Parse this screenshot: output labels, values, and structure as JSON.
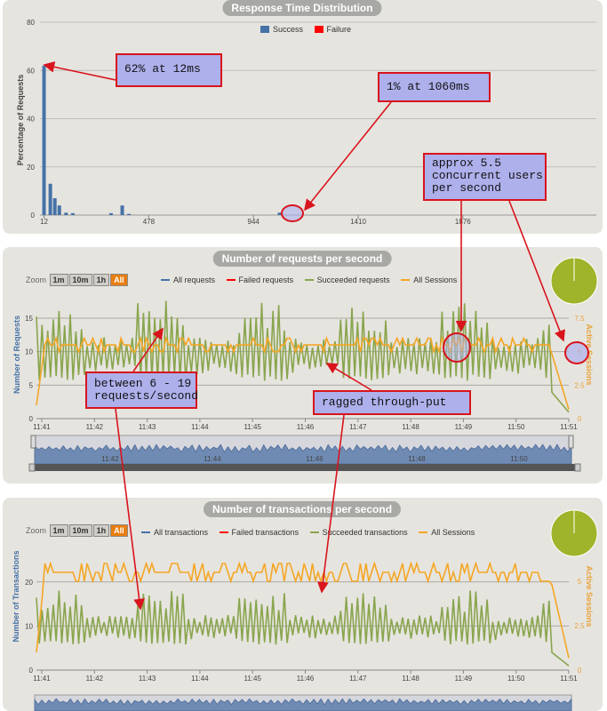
{
  "panels": {
    "response": {
      "title": "Response Time Distribution"
    },
    "requests": {
      "title": "Number of requests per second",
      "ylabel": "Number of Requests",
      "ylabel_right": "Active Sessions"
    },
    "transactions": {
      "title": "Number of transactions per second",
      "ylabel": "Number of Transactions",
      "ylabel_right": "Active Sessions"
    }
  },
  "legend": {
    "response": [
      {
        "label": "Success",
        "color": "#4572a7"
      },
      {
        "label": "Failure",
        "color": "#ff0000"
      }
    ],
    "requests": [
      {
        "label": "All requests",
        "color": "#4572a7"
      },
      {
        "label": "Failed requests",
        "color": "#ff0000"
      },
      {
        "label": "Succeeded requests",
        "color": "#89a54e"
      },
      {
        "label": "All Sessions",
        "color": "#f5a623"
      }
    ],
    "transactions": [
      {
        "label": "All transactions",
        "color": "#4572a7"
      },
      {
        "label": "Failed transactions",
        "color": "#ff0000"
      },
      {
        "label": "Succeeded transactions",
        "color": "#89a54e"
      },
      {
        "label": "All Sessions",
        "color": "#f5a623"
      }
    ]
  },
  "zoom": {
    "label": "Zoom",
    "buttons": [
      "1m",
      "10m",
      "1h",
      "All"
    ],
    "active": "All"
  },
  "annotations": {
    "a1": "62% at 12ms",
    "a2": "1% at 1060ms",
    "a3": "approx 5.5\nconcurrent users\nper second",
    "a4": "between 6 - 19\nrequests/second",
    "a5": "ragged through-put"
  },
  "colors": {
    "success": "#4572a7",
    "failure": "#ff0000",
    "succeeded": "#89a54e",
    "sessions": "#f5a623",
    "pie": "#9fb42a",
    "annotation_bg": "#aeb0ec",
    "annotation_border": "#d8141c"
  },
  "chart_data": [
    {
      "type": "bar",
      "title": "Response Time Distribution",
      "ylabel": "Percentage of Requests",
      "xlabel": "",
      "ylim": [
        0,
        80
      ],
      "yticks": [
        0,
        20,
        40,
        60,
        80
      ],
      "xticks": [
        12,
        478,
        944,
        1410,
        1876
      ],
      "series": [
        {
          "name": "Success",
          "points": [
            [
              12,
              62
            ],
            [
              40,
              13
            ],
            [
              60,
              7
            ],
            [
              80,
              4
            ],
            [
              110,
              1
            ],
            [
              140,
              0.8
            ],
            [
              310,
              0.8
            ],
            [
              360,
              4
            ],
            [
              390,
              0.5
            ],
            [
              1060,
              1
            ]
          ]
        },
        {
          "name": "Failure",
          "points": []
        }
      ]
    },
    {
      "type": "line",
      "title": "Number of requests per second",
      "ylabel": "Number of Requests",
      "ylabel_right": "Active Sessions",
      "x_range": [
        "11:41",
        "11:51"
      ],
      "xticks": [
        "11:41",
        "11:42",
        "11:43",
        "11:44",
        "11:45",
        "11:46",
        "11:47",
        "11:48",
        "11:49",
        "11:50",
        "11:51"
      ],
      "ylim": [
        0,
        20
      ],
      "yticks": [
        0,
        5,
        10,
        15
      ],
      "ylim_right": [
        0,
        10
      ],
      "yticks_right": [
        0,
        2.5,
        5,
        7.5
      ],
      "series": [
        {
          "name": "Succeeded requests",
          "range": [
            6,
            19
          ]
        },
        {
          "name": "All Sessions",
          "level": 5.5
        }
      ],
      "navigator_ticks": [
        "11:42",
        "11:44",
        "11:46",
        "11:48",
        "11:50"
      ]
    },
    {
      "type": "line",
      "title": "Number of transactions per second",
      "ylabel": "Number of Transactions",
      "ylabel_right": "Active Sessions",
      "x_range": [
        "11:41",
        "11:51"
      ],
      "xticks": [
        "11:41",
        "11:42",
        "11:43",
        "11:44",
        "11:45",
        "11:46",
        "11:47",
        "11:48",
        "11:49",
        "11:50",
        "11:51"
      ],
      "yticks": [
        0,
        10,
        20
      ],
      "yticks_right": [
        0,
        2.5,
        5
      ],
      "series": [
        {
          "name": "Succeeded transactions",
          "range": [
            6,
            19
          ]
        },
        {
          "name": "All Sessions",
          "level": 5.5
        }
      ]
    }
  ]
}
